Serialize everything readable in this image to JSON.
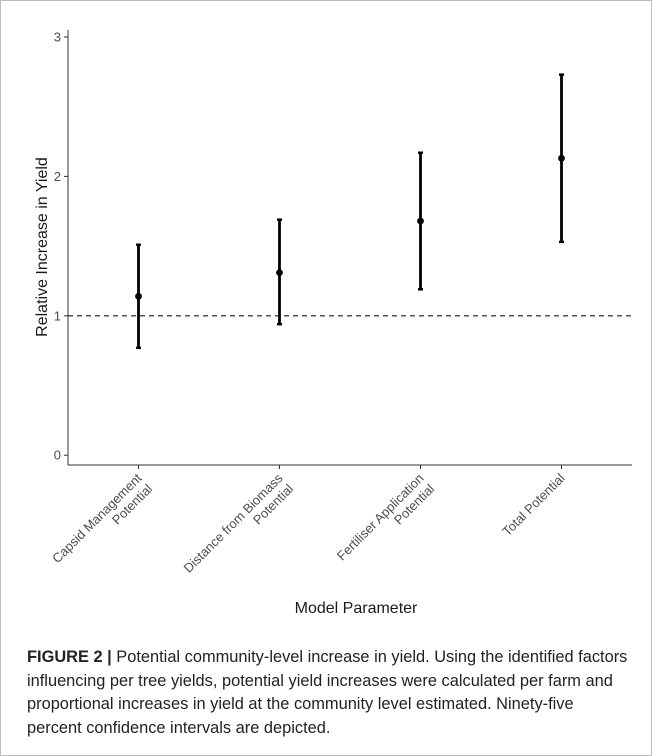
{
  "chart_data": {
    "type": "errorbar",
    "categories": [
      "Capsid Management\nPotential",
      "Distance from Biomass\nPotential",
      "Fertiliser Application\nPotential",
      "Total Potential"
    ],
    "estimates": [
      1.14,
      1.31,
      1.68,
      2.13
    ],
    "ci_lower": [
      0.77,
      0.94,
      1.19,
      1.53
    ],
    "ci_upper": [
      1.51,
      1.69,
      2.17,
      2.73
    ],
    "reference_line": 1,
    "xlabel": "Model Parameter",
    "ylabel": "Relative Increase in Yield",
    "ylim": [
      -0.07,
      3.05
    ],
    "yticks": [
      0,
      1,
      2,
      3
    ],
    "grid": false
  },
  "caption": {
    "label": "FIGURE 2 |",
    "text": " Potential community-level increase in yield. Using the identified factors influencing per tree yields, potential yield increases were calculated per farm and proportional increases in yield at the community level estimated. Ninety-five percent confidence intervals are depicted."
  }
}
